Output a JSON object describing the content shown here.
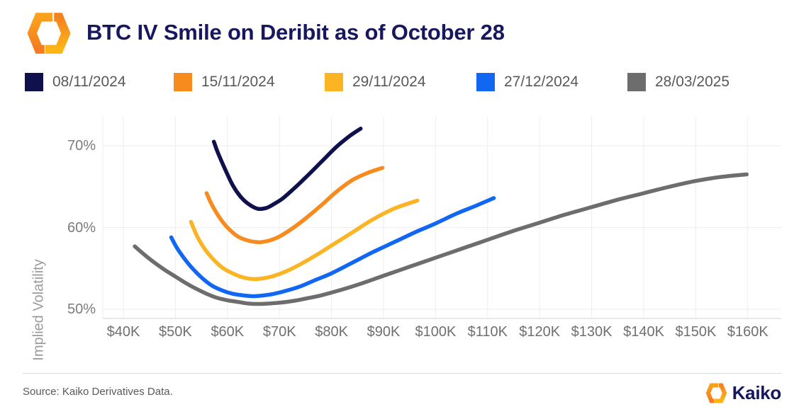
{
  "header": {
    "title": "BTC IV Smile on Deribit as of October 28"
  },
  "icons": {
    "brand_mark": "kaiko-hexagon-mark"
  },
  "colors": {
    "title_navy": "#171760",
    "grid": "#ededed",
    "axis_line": "#e2e2e2",
    "tick_text": "#6f6f6f",
    "legend_text": "#58595b"
  },
  "chart_data": {
    "type": "line",
    "title": "BTC IV Smile on Deribit as of October 28",
    "xlabel": "",
    "ylabel": "Implied Volatility",
    "x_axis": {
      "tick_values_k": [
        40,
        50,
        60,
        70,
        80,
        90,
        100,
        110,
        120,
        130,
        140,
        150,
        160
      ],
      "tick_labels": [
        "$40K",
        "$50K",
        "$60K",
        "$70K",
        "$80K",
        "$90K",
        "$100K",
        "$110K",
        "$120K",
        "$130K",
        "$140K",
        "$150K",
        "$160K"
      ]
    },
    "y_axis": {
      "tick_values_pct": [
        50,
        60,
        70
      ],
      "tick_labels": [
        "50%",
        "60%",
        "70%"
      ],
      "ylim": [
        48.5,
        73.5
      ]
    },
    "grid": true,
    "legend_position": "top",
    "series": [
      {
        "name": "08/11/2024",
        "color": "#10104d",
        "points": [
          [
            57.4,
            70.5
          ],
          [
            58.2,
            69.1
          ],
          [
            59.5,
            67.2
          ],
          [
            61,
            65.2
          ],
          [
            62.5,
            63.8
          ],
          [
            64,
            62.9
          ],
          [
            65.8,
            62.3
          ],
          [
            67.5,
            62.4
          ],
          [
            69,
            62.9
          ],
          [
            70.5,
            63.5
          ],
          [
            72.5,
            64.6
          ],
          [
            75,
            66.1
          ],
          [
            78,
            68.0
          ],
          [
            81,
            69.9
          ],
          [
            83.5,
            71.2
          ],
          [
            85.6,
            72.1
          ]
        ]
      },
      {
        "name": "15/11/2024",
        "color": "#f78b1e",
        "points": [
          [
            56,
            64.2
          ],
          [
            57,
            62.8
          ],
          [
            58.5,
            61.2
          ],
          [
            60,
            60.0
          ],
          [
            62,
            58.9
          ],
          [
            64,
            58.4
          ],
          [
            66,
            58.2
          ],
          [
            68,
            58.4
          ],
          [
            70,
            58.9
          ],
          [
            72.5,
            59.9
          ],
          [
            75,
            61.1
          ],
          [
            78,
            62.7
          ],
          [
            81,
            64.4
          ],
          [
            84,
            65.8
          ],
          [
            87,
            66.7
          ],
          [
            89.8,
            67.3
          ]
        ]
      },
      {
        "name": "29/11/2024",
        "color": "#fbb424",
        "points": [
          [
            53,
            60.7
          ],
          [
            54.2,
            58.9
          ],
          [
            55.5,
            57.5
          ],
          [
            57,
            56.3
          ],
          [
            59,
            55.1
          ],
          [
            61,
            54.4
          ],
          [
            63,
            53.9
          ],
          [
            65,
            53.7
          ],
          [
            67,
            53.8
          ],
          [
            69,
            54.1
          ],
          [
            71.5,
            54.7
          ],
          [
            74,
            55.5
          ],
          [
            77,
            56.6
          ],
          [
            80,
            57.8
          ],
          [
            84,
            59.4
          ],
          [
            88,
            61.0
          ],
          [
            92,
            62.3
          ],
          [
            96.5,
            63.3
          ]
        ]
      },
      {
        "name": "27/12/2024",
        "color": "#1167f2",
        "points": [
          [
            49.2,
            58.8
          ],
          [
            50.2,
            57.6
          ],
          [
            51.5,
            56.4
          ],
          [
            53,
            55.2
          ],
          [
            55,
            53.9
          ],
          [
            57,
            52.9
          ],
          [
            59,
            52.3
          ],
          [
            61,
            51.9
          ],
          [
            63,
            51.7
          ],
          [
            65,
            51.6
          ],
          [
            67,
            51.7
          ],
          [
            69,
            51.9
          ],
          [
            71.5,
            52.3
          ],
          [
            74,
            52.8
          ],
          [
            77,
            53.6
          ],
          [
            80,
            54.4
          ],
          [
            84,
            55.7
          ],
          [
            88,
            57.0
          ],
          [
            92,
            58.2
          ],
          [
            96,
            59.4
          ],
          [
            100,
            60.5
          ],
          [
            104,
            61.7
          ],
          [
            107.5,
            62.6
          ],
          [
            111.2,
            63.6
          ]
        ]
      },
      {
        "name": "28/03/2025",
        "color": "#6d6d6d",
        "points": [
          [
            42.2,
            57.7
          ],
          [
            44,
            56.7
          ],
          [
            46,
            55.7
          ],
          [
            48,
            54.8
          ],
          [
            50,
            54.0
          ],
          [
            52,
            53.2
          ],
          [
            54,
            52.5
          ],
          [
            56,
            51.9
          ],
          [
            58,
            51.4
          ],
          [
            60,
            51.1
          ],
          [
            62,
            50.9
          ],
          [
            64,
            50.7
          ],
          [
            66,
            50.65
          ],
          [
            68,
            50.7
          ],
          [
            70,
            50.8
          ],
          [
            72.5,
            51.0
          ],
          [
            75,
            51.3
          ],
          [
            78,
            51.7
          ],
          [
            82,
            52.4
          ],
          [
            86,
            53.2
          ],
          [
            90,
            54.1
          ],
          [
            95,
            55.2
          ],
          [
            100,
            56.3
          ],
          [
            105,
            57.4
          ],
          [
            110,
            58.5
          ],
          [
            115,
            59.6
          ],
          [
            120,
            60.6
          ],
          [
            125,
            61.6
          ],
          [
            130,
            62.5
          ],
          [
            135,
            63.4
          ],
          [
            140,
            64.2
          ],
          [
            145,
            65.0
          ],
          [
            150,
            65.7
          ],
          [
            155,
            66.2
          ],
          [
            159.8,
            66.5
          ]
        ]
      }
    ]
  },
  "footer": {
    "source": "Source: Kaiko Derivatives Data.",
    "brand_label": "Kaiko"
  }
}
